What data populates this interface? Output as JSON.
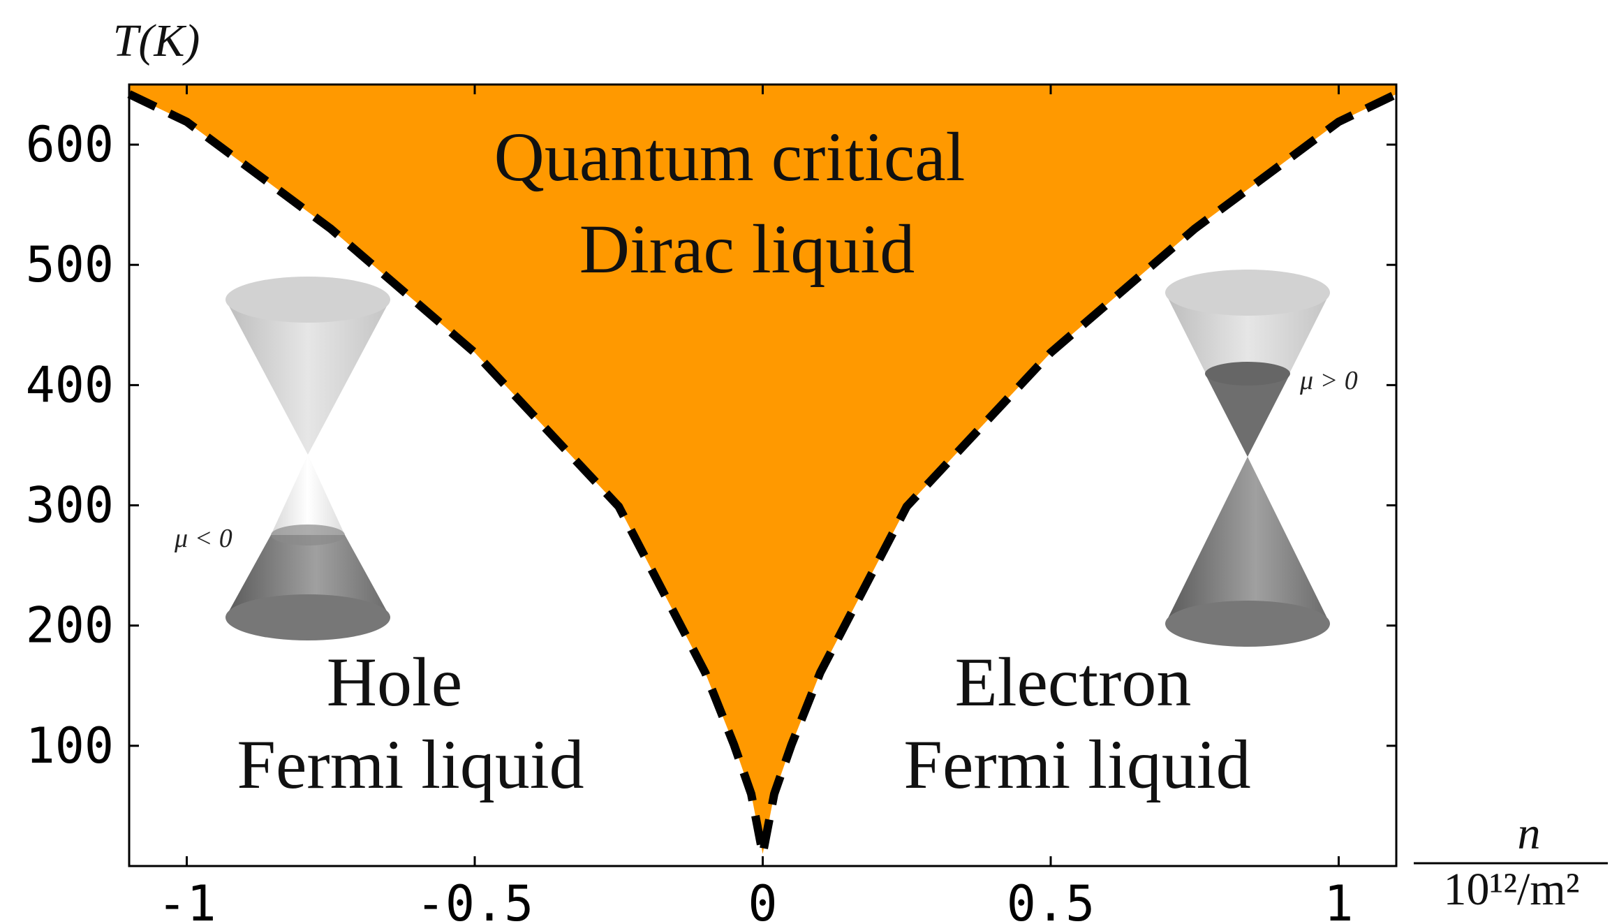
{
  "chart_data": {
    "type": "area",
    "x_label_top": "n",
    "x_label_bottom": "10¹²/m²",
    "y_label": "T(K)",
    "x": [
      -1.1,
      -1,
      -0.75,
      -0.5,
      -0.25,
      -0.1,
      -0.05,
      -0.02,
      0,
      0.02,
      0.05,
      0.1,
      0.25,
      0.5,
      0.75,
      1,
      1.1
    ],
    "values": [
      642,
      619,
      530,
      427,
      299,
      161,
      101,
      60,
      10,
      60,
      101,
      161,
      299,
      427,
      530,
      619,
      642
    ],
    "color": "#ff9900",
    "line_color": "#000000",
    "line_style": "dashed",
    "xlim": [
      -1.1,
      1.1
    ],
    "ylim": [
      0,
      650
    ],
    "xticks": [
      -1,
      -0.5,
      0,
      0.5,
      1
    ],
    "yticks": [
      100,
      200,
      300,
      400,
      500,
      600
    ],
    "annotations": [
      "Quantum critical",
      "Dirac liquid",
      "Hole",
      "Fermi liquid",
      "Electron",
      "Fermi liquid",
      "μ < 0",
      "μ > 0"
    ]
  }
}
